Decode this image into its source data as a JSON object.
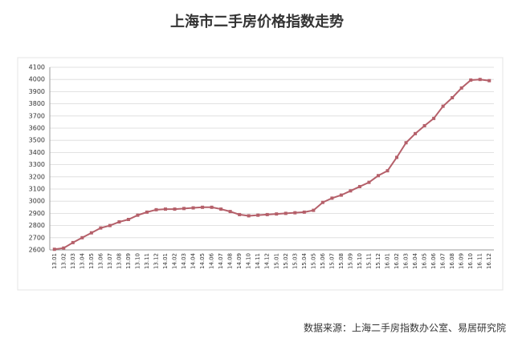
{
  "chart_data": {
    "type": "line",
    "title": "上海市二手房价格指数走势",
    "source": "数据来源：上海二手房指数办公室、易居研究院",
    "categories": [
      "13.01",
      "13.02",
      "13.03",
      "13.04",
      "13.05",
      "13.06",
      "13.07",
      "13.08",
      "13.09",
      "13.10",
      "13.11",
      "13.12",
      "14.01",
      "14.02",
      "14.03",
      "14.04",
      "14.05",
      "14.06",
      "14.07",
      "14.08",
      "14.09",
      "14.10",
      "14.11",
      "14.12",
      "15.01",
      "15.02",
      "15.03",
      "15.04",
      "15.05",
      "15.06",
      "15.07",
      "15.08",
      "15.09",
      "15.10",
      "15.11",
      "15.12",
      "16.01",
      "16.02",
      "16.03",
      "16.04",
      "16.05",
      "16.06",
      "16.07",
      "16.08",
      "16.09",
      "16.10",
      "16.11",
      "16.12"
    ],
    "series": [
      {
        "color": "#b5606a",
        "values": [
          2605,
          2615,
          2660,
          2700,
          2740,
          2780,
          2800,
          2830,
          2850,
          2885,
          2910,
          2930,
          2935,
          2935,
          2940,
          2945,
          2950,
          2950,
          2935,
          2915,
          2890,
          2880,
          2885,
          2890,
          2895,
          2900,
          2905,
          2910,
          2925,
          2990,
          3025,
          3050,
          3085,
          3120,
          3155,
          3210,
          3250,
          3360,
          3480,
          3555,
          3620,
          3680,
          3780,
          3850,
          3930,
          3995,
          4000,
          3990
        ]
      }
    ],
    "ylim": [
      2600,
      4100
    ],
    "yticks": [
      2600,
      2700,
      2800,
      2900,
      3000,
      3100,
      3200,
      3300,
      3400,
      3500,
      3600,
      3700,
      3800,
      3900,
      4000,
      4100
    ],
    "grid": true
  }
}
